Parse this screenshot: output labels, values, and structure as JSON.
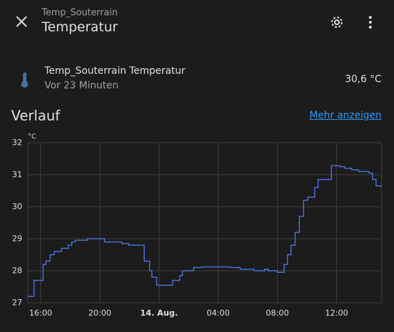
{
  "header": {
    "subtitle": "Temp_Souterrain",
    "title": "Temperatur"
  },
  "entity": {
    "name": "Temp_Souterrain Temperatur",
    "updated": "Vor 23 Minuten",
    "state": "30,6 °C"
  },
  "history": {
    "title": "Verlauf",
    "link": "Mehr anzeigen"
  },
  "chart_data": {
    "type": "line",
    "y_label": "°C",
    "color": "#4a6fd8",
    "step": true,
    "grid": true,
    "x": [
      "15:08",
      "15:33",
      "16:10",
      "16:21",
      "16:38",
      "16:55",
      "17:24",
      "17:52",
      "18:06",
      "18:20",
      "19:08",
      "20:04",
      "20:19",
      "21:29",
      "21:57",
      "22:54",
      "23:00",
      "23:22",
      "23:31",
      "23:50",
      "00:41",
      "00:55",
      "01:24",
      "01:35",
      "02:20",
      "02:54",
      "04:47",
      "05:29",
      "06:26",
      "07:08",
      "07:22",
      "07:59",
      "08:19",
      "08:27",
      "08:41",
      "08:55",
      "09:12",
      "09:29",
      "09:46",
      "10:03",
      "10:31",
      "10:45",
      "11:31",
      "11:39",
      "12:13",
      "12:33",
      "13:01",
      "13:29",
      "14:12",
      "14:26",
      "14:40",
      "15:02"
    ],
    "series": [
      {
        "name": "Temp_Souterrain Temperatur",
        "values": [
          27.2,
          27.7,
          28.2,
          28.3,
          28.5,
          28.6,
          28.7,
          28.8,
          28.9,
          28.95,
          29.0,
          29.0,
          28.9,
          28.85,
          28.8,
          28.8,
          28.3,
          28.0,
          27.8,
          27.55,
          27.55,
          27.7,
          27.85,
          28.0,
          28.1,
          28.12,
          28.1,
          28.05,
          28.0,
          28.05,
          28.0,
          27.95,
          27.95,
          28.2,
          28.5,
          28.8,
          29.2,
          29.7,
          30.2,
          30.3,
          30.6,
          30.85,
          30.85,
          31.28,
          31.25,
          31.2,
          31.15,
          31.1,
          31.05,
          30.85,
          30.65,
          30.62
        ]
      }
    ],
    "xlim": [
      "15:08",
      "15:02"
    ],
    "xticks": [
      "16:00",
      "20:00",
      {
        "value": "00:00",
        "label": "14. Aug."
      },
      "04:00",
      "08:00",
      "12:00"
    ],
    "ylim": [
      27,
      32
    ],
    "yticks": [
      27,
      28,
      29,
      30,
      31,
      32
    ]
  }
}
